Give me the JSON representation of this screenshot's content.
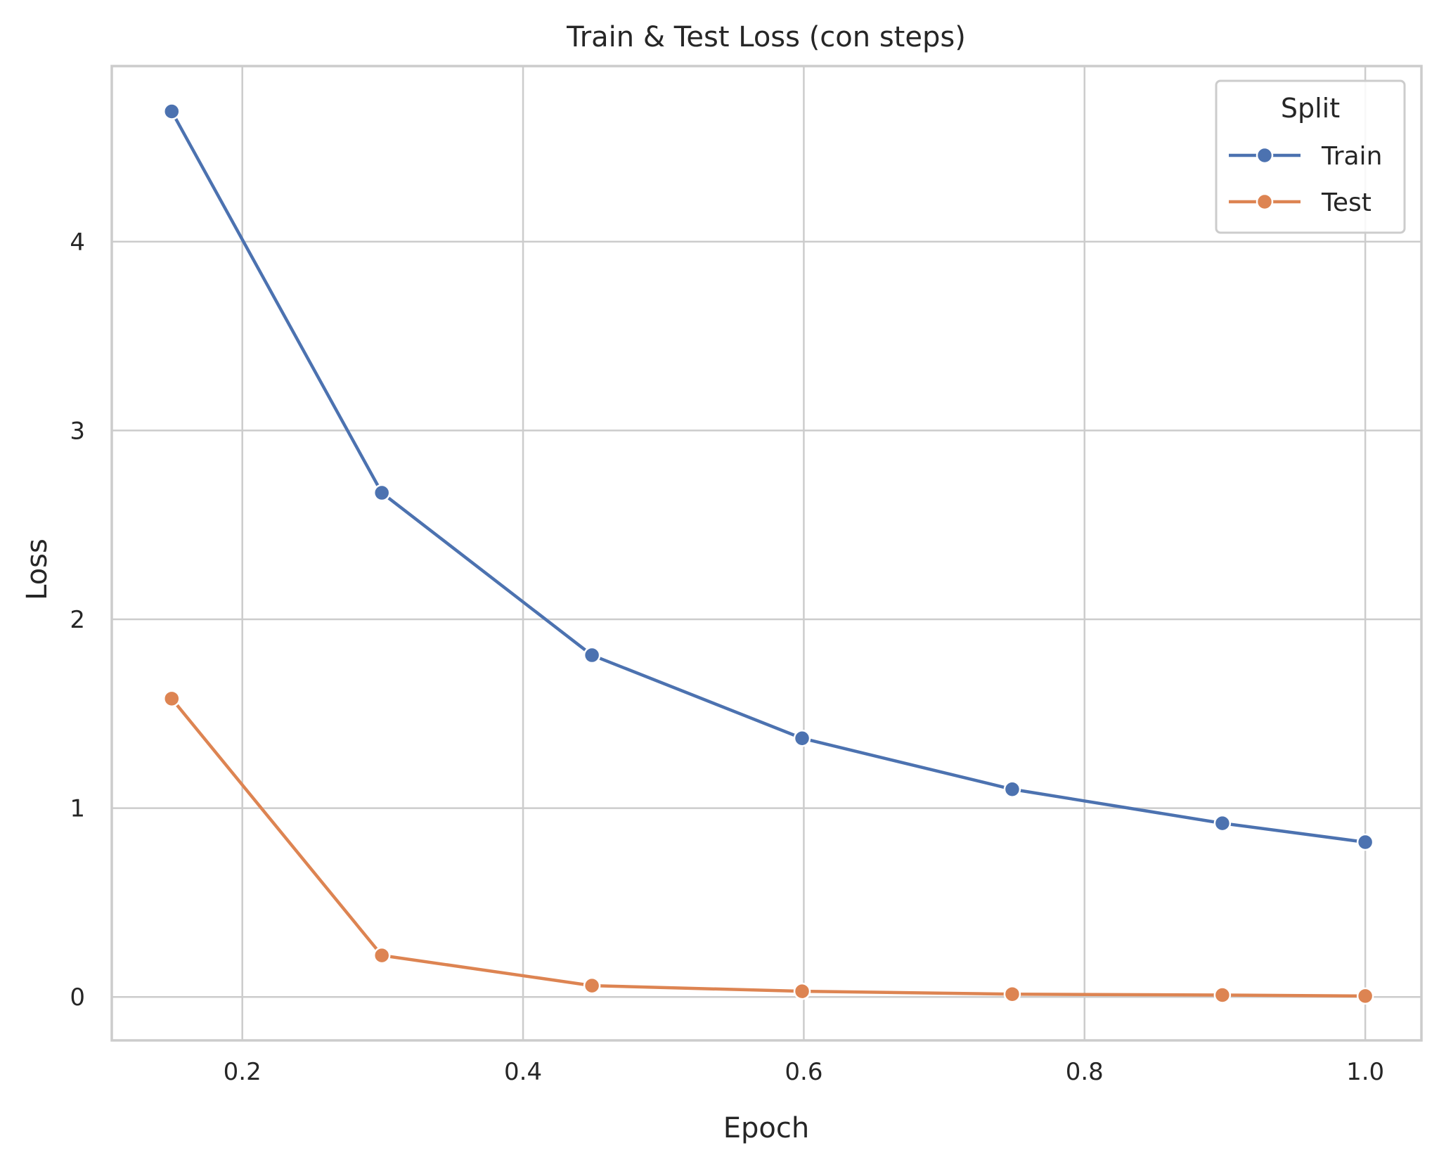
{
  "chart_data": {
    "type": "line",
    "title": "Train & Test Loss (con steps)",
    "xlabel": "Epoch",
    "ylabel": "Loss",
    "xlim": [
      0.107,
      1.04
    ],
    "ylim": [
      -0.23,
      4.93
    ],
    "xticks": [
      0.2,
      0.4,
      0.6,
      0.8,
      1.0
    ],
    "xtick_labels": [
      "0.2",
      "0.4",
      "0.6",
      "0.8",
      "1.0"
    ],
    "yticks": [
      0,
      1,
      2,
      3,
      4
    ],
    "ytick_labels": [
      "0",
      "1",
      "2",
      "3",
      "4"
    ],
    "grid": true,
    "legend": {
      "title": "Split",
      "placement": "top-right"
    },
    "x": [
      0.1497,
      0.2994,
      0.4491,
      0.5988,
      0.7485,
      0.8982,
      1.0
    ],
    "series": [
      {
        "name": "Train",
        "color": "#4c72b0",
        "values": [
          4.69,
          2.67,
          1.81,
          1.37,
          1.1,
          0.92,
          0.82
        ]
      },
      {
        "name": "Test",
        "color": "#dd8452",
        "values": [
          1.58,
          0.22,
          0.06,
          0.03,
          0.015,
          0.01,
          0.005
        ]
      }
    ]
  }
}
